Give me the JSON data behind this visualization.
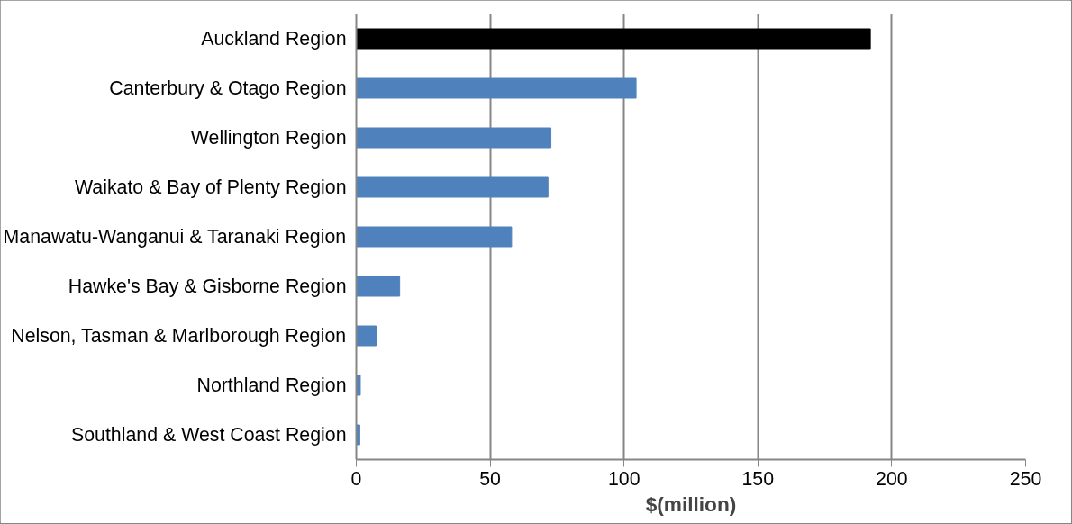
{
  "chart_data": {
    "type": "bar",
    "orientation": "horizontal",
    "xlabel": "$(million)",
    "categories": [
      "Auckland Region",
      "Canterbury & Otago Region",
      "Wellington Region",
      "Waikato & Bay of Plenty Region",
      "Manawatu-Wanganui & Taranaki Region",
      "Hawke's Bay & Gisborne Region",
      "Nelson, Tasman & Marlborough Region",
      "Northland Region",
      "Southland & West Coast Region"
    ],
    "values": [
      192,
      104.5,
      72.7,
      71.6,
      58,
      16.2,
      7.4,
      1.5,
      1.3
    ],
    "colors": [
      "#000000",
      "#4f81bd",
      "#4f81bd",
      "#4f81bd",
      "#4f81bd",
      "#4f81bd",
      "#4f81bd",
      "#4f81bd",
      "#4f81bd"
    ],
    "xlim": [
      0,
      250
    ],
    "xticks": [
      0,
      50,
      100,
      150,
      200,
      250
    ],
    "grid": "x"
  }
}
